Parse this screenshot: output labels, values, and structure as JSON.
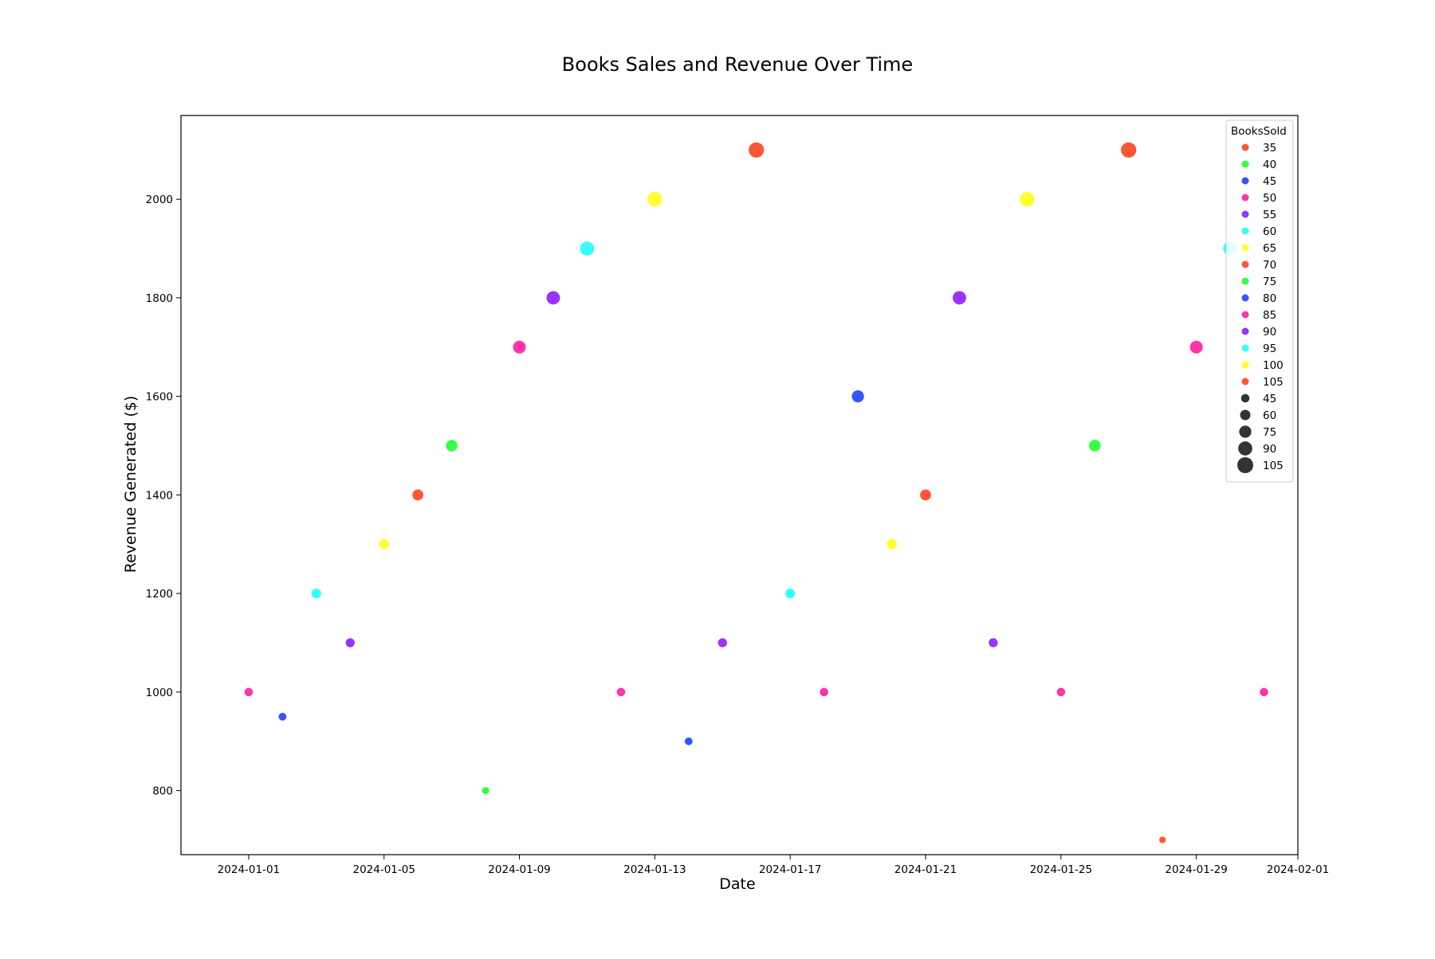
{
  "chart_data": {
    "type": "scatter",
    "title": "Books Sales and Revenue Over Time",
    "xlabel": "Date",
    "ylabel": "Revenue Generated ($)",
    "xlim": [
      "2023-12-30",
      "2024-02-01"
    ],
    "ylim": [
      670,
      2170
    ],
    "x_ticks": [
      "2024-01-01",
      "2024-01-05",
      "2024-01-09",
      "2024-01-13",
      "2024-01-17",
      "2024-01-21",
      "2024-01-25",
      "2024-01-29",
      "2024-02-01"
    ],
    "y_ticks": [
      800,
      1000,
      1200,
      1400,
      1600,
      1800,
      2000
    ],
    "grid": false,
    "legend": {
      "title": "BooksSold",
      "placement": "top-right",
      "hue_entries": [
        {
          "label": "35",
          "color": "#ff5533"
        },
        {
          "label": "40",
          "color": "#33ff44"
        },
        {
          "label": "45",
          "color": "#3355ff"
        },
        {
          "label": "50",
          "color": "#ff33aa"
        },
        {
          "label": "55",
          "color": "#9933ff"
        },
        {
          "label": "60",
          "color": "#33ffff"
        },
        {
          "label": "65",
          "color": "#ffff33"
        },
        {
          "label": "70",
          "color": "#ff5533"
        },
        {
          "label": "75",
          "color": "#33ff44"
        },
        {
          "label": "80",
          "color": "#3355ff"
        },
        {
          "label": "85",
          "color": "#ff33aa"
        },
        {
          "label": "90",
          "color": "#9933ff"
        },
        {
          "label": "95",
          "color": "#33ffff"
        },
        {
          "label": "100",
          "color": "#ffff33"
        },
        {
          "label": "105",
          "color": "#ff5533"
        }
      ],
      "size_entries": [
        "45",
        "60",
        "75",
        "90",
        "105"
      ],
      "size_color": "#333333"
    },
    "points": [
      {
        "date": "2024-01-01",
        "revenue": 1000,
        "books_sold": 50,
        "color": "#ff33aa"
      },
      {
        "date": "2024-01-02",
        "revenue": 950,
        "books_sold": 45,
        "color": "#3355ff"
      },
      {
        "date": "2024-01-03",
        "revenue": 1200,
        "books_sold": 60,
        "color": "#33ffff"
      },
      {
        "date": "2024-01-04",
        "revenue": 1100,
        "books_sold": 55,
        "color": "#9933ff"
      },
      {
        "date": "2024-01-05",
        "revenue": 1300,
        "books_sold": 65,
        "color": "#ffff33"
      },
      {
        "date": "2024-01-06",
        "revenue": 1400,
        "books_sold": 70,
        "color": "#ff5533"
      },
      {
        "date": "2024-01-07",
        "revenue": 1500,
        "books_sold": 75,
        "color": "#33ff44"
      },
      {
        "date": "2024-01-08",
        "revenue": 800,
        "books_sold": 40,
        "color": "#33ff44"
      },
      {
        "date": "2024-01-09",
        "revenue": 1700,
        "books_sold": 85,
        "color": "#ff33aa"
      },
      {
        "date": "2024-01-10",
        "revenue": 1800,
        "books_sold": 90,
        "color": "#9933ff"
      },
      {
        "date": "2024-01-11",
        "revenue": 1900,
        "books_sold": 95,
        "color": "#33ffff"
      },
      {
        "date": "2024-01-12",
        "revenue": 1000,
        "books_sold": 50,
        "color": "#ff33aa"
      },
      {
        "date": "2024-01-13",
        "revenue": 2000,
        "books_sold": 100,
        "color": "#ffff33"
      },
      {
        "date": "2024-01-14",
        "revenue": 900,
        "books_sold": 45,
        "color": "#3355ff"
      },
      {
        "date": "2024-01-15",
        "revenue": 1100,
        "books_sold": 55,
        "color": "#9933ff"
      },
      {
        "date": "2024-01-16",
        "revenue": 2100,
        "books_sold": 105,
        "color": "#ff5533"
      },
      {
        "date": "2024-01-17",
        "revenue": 1200,
        "books_sold": 60,
        "color": "#33ffff"
      },
      {
        "date": "2024-01-18",
        "revenue": 1000,
        "books_sold": 50,
        "color": "#ff33aa"
      },
      {
        "date": "2024-01-19",
        "revenue": 1600,
        "books_sold": 80,
        "color": "#3355ff"
      },
      {
        "date": "2024-01-20",
        "revenue": 1300,
        "books_sold": 65,
        "color": "#ffff33"
      },
      {
        "date": "2024-01-21",
        "revenue": 1400,
        "books_sold": 70,
        "color": "#ff5533"
      },
      {
        "date": "2024-01-22",
        "revenue": 1800,
        "books_sold": 90,
        "color": "#9933ff"
      },
      {
        "date": "2024-01-23",
        "revenue": 1100,
        "books_sold": 55,
        "color": "#9933ff"
      },
      {
        "date": "2024-01-24",
        "revenue": 2000,
        "books_sold": 100,
        "color": "#ffff33"
      },
      {
        "date": "2024-01-25",
        "revenue": 1000,
        "books_sold": 50,
        "color": "#ff33aa"
      },
      {
        "date": "2024-01-26",
        "revenue": 1500,
        "books_sold": 75,
        "color": "#33ff44"
      },
      {
        "date": "2024-01-27",
        "revenue": 2100,
        "books_sold": 105,
        "color": "#ff5533"
      },
      {
        "date": "2024-01-28",
        "revenue": 700,
        "books_sold": 35,
        "color": "#ff5533"
      },
      {
        "date": "2024-01-29",
        "revenue": 1700,
        "books_sold": 85,
        "color": "#ff33aa"
      },
      {
        "date": "2024-01-30",
        "revenue": 1900,
        "books_sold": 95,
        "color": "#33ffff"
      },
      {
        "date": "2024-01-31",
        "revenue": 1000,
        "books_sold": 50,
        "color": "#ff33aa"
      }
    ]
  }
}
